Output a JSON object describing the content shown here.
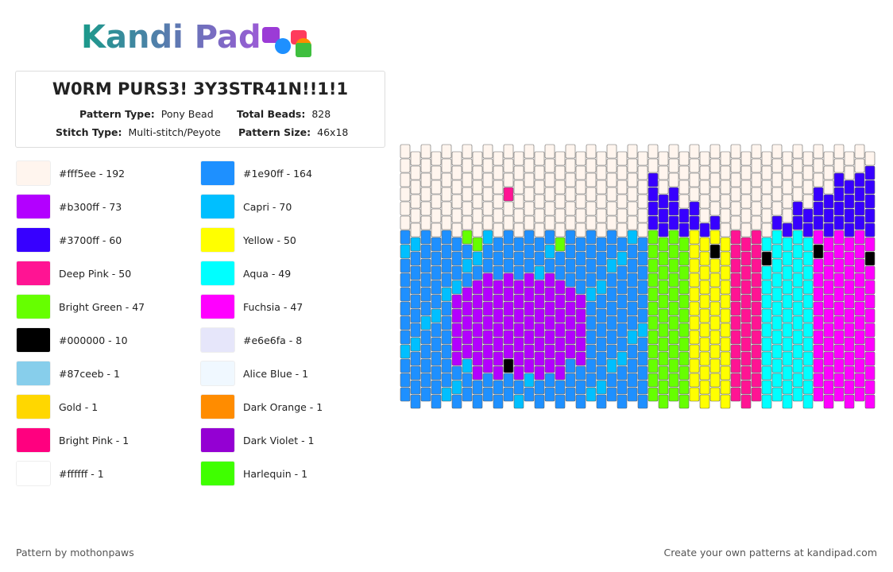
{
  "header": {
    "logo": "Kandi Pad",
    "title": "W0RM PURS3! 3Y3STR41N!!1!1",
    "pattern_type_label": "Pattern Type:",
    "pattern_type": "Pony Bead",
    "total_beads_label": "Total Beads:",
    "total_beads": "828",
    "stitch_type_label": "Stitch Type:",
    "stitch_type": "Multi-stitch/Peyote",
    "pattern_size_label": "Pattern Size:",
    "pattern_size": "46x18"
  },
  "legend": [
    {
      "name": "#fff5ee - 192",
      "color": "#fff5ee"
    },
    {
      "name": "#1e90ff - 164",
      "color": "#1e90ff"
    },
    {
      "name": "#b300ff - 73",
      "color": "#b300ff"
    },
    {
      "name": "Capri - 70",
      "color": "#00bfff"
    },
    {
      "name": "#3700ff - 60",
      "color": "#3700ff"
    },
    {
      "name": "Yellow - 50",
      "color": "#ffff00"
    },
    {
      "name": "Deep Pink - 50",
      "color": "#ff1493"
    },
    {
      "name": "Aqua - 49",
      "color": "#00ffff"
    },
    {
      "name": "Bright Green - 47",
      "color": "#66ff00"
    },
    {
      "name": "Fuchsia - 47",
      "color": "#ff00ff"
    },
    {
      "name": "#000000 - 10",
      "color": "#000000"
    },
    {
      "name": "#e6e6fa - 8",
      "color": "#e6e6fa"
    },
    {
      "name": "#87ceeb - 1",
      "color": "#87ceeb"
    },
    {
      "name": "Alice Blue - 1",
      "color": "#f0f8ff"
    },
    {
      "name": "Gold - 1",
      "color": "#ffd700"
    },
    {
      "name": "Dark Orange - 1",
      "color": "#ff8c00"
    },
    {
      "name": "Bright Pink - 1",
      "color": "#ff007f"
    },
    {
      "name": "Dark Violet - 1",
      "color": "#9400d3"
    },
    {
      "name": "#ffffff - 1",
      "color": "#ffffff"
    },
    {
      "name": "Harlequin - 1",
      "color": "#3fff00"
    }
  ],
  "footer": {
    "left": "Pattern by mothonpaws",
    "right": "Create your own patterns at kandipad.com"
  }
}
